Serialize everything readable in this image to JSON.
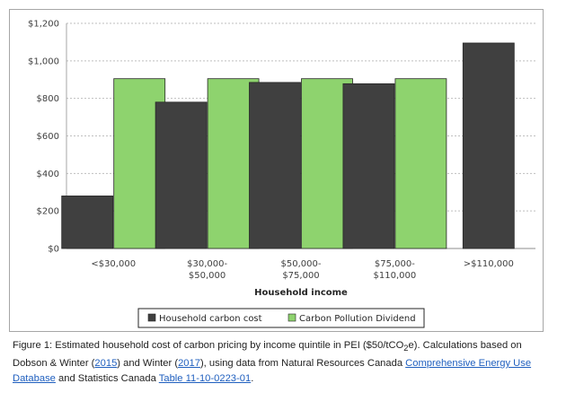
{
  "chart_data": {
    "type": "bar",
    "categories": [
      [
        "<$30,000"
      ],
      [
        "$30,000-",
        "$50,000"
      ],
      [
        "$50,000-",
        "$75,000"
      ],
      [
        "$75,000-",
        "$110,000"
      ],
      [
        ">$110,000"
      ]
    ],
    "series": [
      {
        "name": "Household carbon cost",
        "values": [
          280,
          780,
          885,
          878,
          1095
        ],
        "color": "#404040"
      },
      {
        "name": "Carbon Pollution Dividend",
        "values": [
          905,
          905,
          905,
          905,
          null
        ],
        "color": "#8ed36e"
      }
    ],
    "xlabel": "Household income",
    "ylabel": "",
    "ylim": [
      0,
      1200
    ],
    "yticks": [
      0,
      200,
      400,
      600,
      800,
      1000,
      1200
    ],
    "ytick_labels": [
      "$0",
      "$200",
      "$400",
      "$600",
      "$800",
      "$1,000",
      "$1,200"
    ],
    "grid": "horizontal-dashed",
    "legend": "bottom-center"
  },
  "caption": {
    "p1": "Figure 1: Estimated household cost of carbon pricing by income quintile in PEI ($50/tCO",
    "sub": "2",
    "p2": "e). Calculations based on Dobson & Winter (",
    "link1": "2015",
    "p3": ") and Winter (",
    "link2": "2017",
    "p4": "), using data from Natural Resources Canada ",
    "link3": "Comprehensive Energy Use Database",
    "p5": " and Statistics Canada ",
    "link4": "Table 11-10-0223-01",
    "p6": "."
  }
}
